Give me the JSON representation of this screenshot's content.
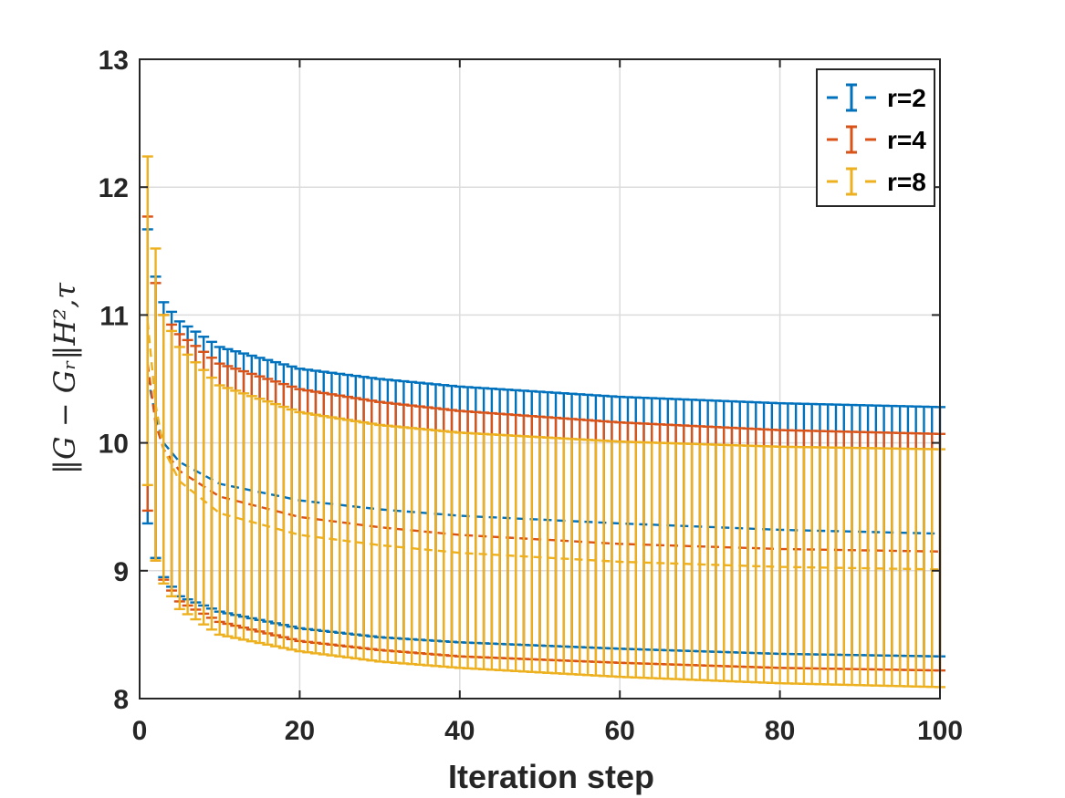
{
  "chart_data": {
    "type": "line",
    "title": "",
    "xlabel": "Iteration step",
    "ylabel": "‖G − Gᵣ‖H²,τ",
    "xlim": [
      0,
      100
    ],
    "ylim": [
      8,
      13
    ],
    "xticks": [
      0,
      20,
      40,
      60,
      80,
      100
    ],
    "yticks": [
      8,
      9,
      10,
      11,
      12,
      13
    ],
    "grid": true,
    "legend_position": "top-right",
    "series": [
      {
        "name": "r=2",
        "color": "#0072BD",
        "mean_points": [
          [
            1,
            10.52
          ],
          [
            2,
            10.2
          ],
          [
            3,
            10.0
          ],
          [
            5,
            9.85
          ],
          [
            10,
            9.68
          ],
          [
            20,
            9.55
          ],
          [
            30,
            9.48
          ],
          [
            40,
            9.43
          ],
          [
            60,
            9.37
          ],
          [
            80,
            9.32
          ],
          [
            100,
            9.29
          ]
        ],
        "upper_points": [
          [
            1,
            11.67
          ],
          [
            2,
            11.3
          ],
          [
            3,
            11.1
          ],
          [
            5,
            10.95
          ],
          [
            10,
            10.75
          ],
          [
            20,
            10.58
          ],
          [
            30,
            10.5
          ],
          [
            40,
            10.44
          ],
          [
            60,
            10.36
          ],
          [
            80,
            10.31
          ],
          [
            100,
            10.28
          ]
        ],
        "lower_points": [
          [
            1,
            9.37
          ],
          [
            2,
            9.1
          ],
          [
            3,
            8.95
          ],
          [
            5,
            8.8
          ],
          [
            10,
            8.68
          ],
          [
            20,
            8.55
          ],
          [
            30,
            8.48
          ],
          [
            40,
            8.44
          ],
          [
            60,
            8.39
          ],
          [
            80,
            8.35
          ],
          [
            100,
            8.33
          ]
        ]
      },
      {
        "name": "r=4",
        "color": "#D95319",
        "mean_points": [
          [
            1,
            10.62
          ],
          [
            2,
            10.15
          ],
          [
            3,
            9.95
          ],
          [
            5,
            9.78
          ],
          [
            10,
            9.58
          ],
          [
            20,
            9.42
          ],
          [
            30,
            9.34
          ],
          [
            40,
            9.28
          ],
          [
            60,
            9.21
          ],
          [
            80,
            9.17
          ],
          [
            100,
            9.15
          ]
        ],
        "upper_points": [
          [
            1,
            11.77
          ],
          [
            2,
            11.25
          ],
          [
            3,
            11.0
          ],
          [
            5,
            10.85
          ],
          [
            10,
            10.62
          ],
          [
            20,
            10.42
          ],
          [
            30,
            10.32
          ],
          [
            40,
            10.25
          ],
          [
            60,
            10.16
          ],
          [
            80,
            10.1
          ],
          [
            100,
            10.07
          ]
        ],
        "lower_points": [
          [
            1,
            9.47
          ],
          [
            2,
            9.08
          ],
          [
            3,
            8.93
          ],
          [
            5,
            8.76
          ],
          [
            10,
            8.6
          ],
          [
            20,
            8.45
          ],
          [
            30,
            8.38
          ],
          [
            40,
            8.33
          ],
          [
            60,
            8.28
          ],
          [
            80,
            8.24
          ],
          [
            100,
            8.22
          ]
        ]
      },
      {
        "name": "r=8",
        "color": "#EDB120",
        "mean_points": [
          [
            1,
            10.95
          ],
          [
            2,
            10.3
          ],
          [
            3,
            9.95
          ],
          [
            5,
            9.7
          ],
          [
            10,
            9.45
          ],
          [
            20,
            9.28
          ],
          [
            30,
            9.2
          ],
          [
            40,
            9.14
          ],
          [
            60,
            9.07
          ],
          [
            80,
            9.03
          ],
          [
            100,
            9.01
          ]
        ],
        "upper_points": [
          [
            1,
            12.24
          ],
          [
            2,
            11.52
          ],
          [
            3,
            11.0
          ],
          [
            5,
            10.75
          ],
          [
            10,
            10.45
          ],
          [
            20,
            10.24
          ],
          [
            30,
            10.14
          ],
          [
            40,
            10.08
          ],
          [
            60,
            10.01
          ],
          [
            80,
            9.97
          ],
          [
            100,
            9.95
          ]
        ],
        "lower_points": [
          [
            1,
            9.67
          ],
          [
            2,
            9.08
          ],
          [
            3,
            8.9
          ],
          [
            5,
            8.7
          ],
          [
            10,
            8.5
          ],
          [
            20,
            8.37
          ],
          [
            30,
            8.29
          ],
          [
            40,
            8.24
          ],
          [
            60,
            8.17
          ],
          [
            80,
            8.12
          ],
          [
            100,
            8.09
          ]
        ]
      }
    ]
  }
}
